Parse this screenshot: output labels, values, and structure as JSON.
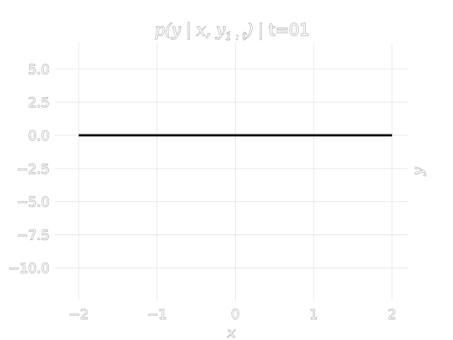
{
  "chart_data": {
    "type": "line",
    "title_math": "p(y | x, y",
    "title_sub": "1 : t",
    "title_close": ")",
    "title_suffix": " | t=01",
    "xlabel": "x",
    "ylabel": "y",
    "xlim": [
      -2.3,
      2.2
    ],
    "ylim": [
      -12.5,
      7.0
    ],
    "x_ticks": [
      -2,
      -1,
      0,
      1,
      2
    ],
    "x_tick_labels": [
      "−2",
      "−1",
      "0",
      "1",
      "2"
    ],
    "y_ticks": [
      5.0,
      2.5,
      0.0,
      -2.5,
      -5.0,
      -7.5,
      -10.0
    ],
    "y_tick_labels": [
      "5.0",
      "2.5",
      "0.0",
      "−2.5",
      "−5.0",
      "−7.5",
      "−10.0"
    ],
    "grid": true,
    "series": [
      {
        "x": [
          -2,
          2
        ],
        "y": [
          0.0,
          0.0
        ],
        "color": "#000000"
      }
    ]
  }
}
